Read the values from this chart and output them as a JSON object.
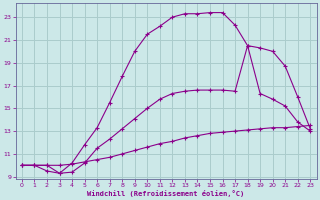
{
  "xlabel": "Windchill (Refroidissement éolien,°C)",
  "background_color": "#cce8e8",
  "grid_color": "#aacccc",
  "line_color": "#8b008b",
  "xlim": [
    -0.5,
    23.5
  ],
  "ylim": [
    8.8,
    24.2
  ],
  "xticks": [
    0,
    1,
    2,
    3,
    4,
    5,
    6,
    7,
    8,
    9,
    10,
    11,
    12,
    13,
    14,
    15,
    16,
    17,
    18,
    19,
    20,
    21,
    22,
    23
  ],
  "yticks": [
    9,
    11,
    13,
    15,
    17,
    19,
    21,
    23
  ],
  "curve1_x": [
    0,
    1,
    2,
    3,
    4,
    5,
    6,
    7,
    8,
    9,
    10,
    11,
    12,
    13,
    14,
    15,
    16,
    17,
    18,
    19,
    20,
    21,
    22,
    23
  ],
  "curve1_y": [
    10.0,
    10.0,
    10.0,
    10.0,
    10.1,
    10.3,
    10.5,
    10.7,
    11.0,
    11.3,
    11.6,
    11.9,
    12.1,
    12.4,
    12.6,
    12.8,
    12.9,
    13.0,
    13.1,
    13.2,
    13.3,
    13.3,
    13.4,
    13.5
  ],
  "curve2_x": [
    0,
    1,
    2,
    3,
    4,
    5,
    6,
    7,
    8,
    9,
    10,
    11,
    12,
    13,
    14,
    15,
    16,
    17,
    18,
    19,
    20,
    21,
    22,
    23
  ],
  "curve2_y": [
    10.0,
    10.0,
    10.0,
    9.3,
    9.4,
    10.2,
    11.5,
    12.3,
    13.2,
    14.1,
    15.0,
    15.8,
    16.3,
    16.5,
    16.6,
    16.6,
    16.6,
    16.5,
    20.5,
    16.3,
    15.8,
    15.2,
    13.8,
    13.0
  ],
  "curve3_x": [
    0,
    1,
    2,
    3,
    4,
    5,
    6,
    7,
    8,
    9,
    10,
    11,
    12,
    13,
    14,
    15,
    16,
    17,
    18,
    19,
    20,
    21,
    22,
    23
  ],
  "curve3_y": [
    10.0,
    10.0,
    9.5,
    9.3,
    10.2,
    11.8,
    13.3,
    15.5,
    17.8,
    20.0,
    21.5,
    22.2,
    23.0,
    23.3,
    23.3,
    23.4,
    23.4,
    22.3,
    20.5,
    20.3,
    20.0,
    18.7,
    16.0,
    13.2
  ]
}
